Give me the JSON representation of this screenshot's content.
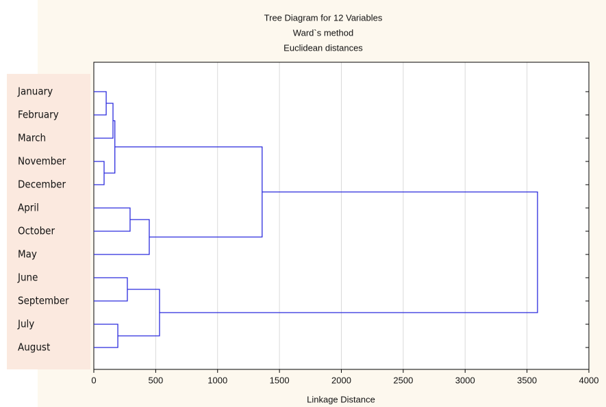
{
  "chart_data": {
    "type": "dendrogram",
    "title": "Tree Diagram for 12 Variables",
    "subtitle": [
      "Ward`s method",
      "Euclidean distances"
    ],
    "xlabel": "Linkage Distance",
    "xlim": [
      0,
      4000
    ],
    "xticks": [
      0,
      500,
      1000,
      1500,
      2000,
      2500,
      3000,
      3500,
      4000
    ],
    "grid": true,
    "color": "#2b2bdd",
    "tree": {
      "height": 3585,
      "children": [
        {
          "height": 1360,
          "children": [
            {
              "height": 170,
              "children": [
                {
                  "height": 155,
                  "children": [
                    {
                      "height": 100,
                      "children": [
                        "January",
                        "February"
                      ]
                    },
                    "March"
                  ]
                },
                {
                  "height": 83,
                  "children": [
                    "November",
                    "December"
                  ]
                }
              ]
            },
            {
              "height": 448,
              "children": [
                {
                  "height": 293,
                  "children": [
                    "April",
                    "October"
                  ]
                },
                "May"
              ]
            }
          ]
        },
        {
          "height": 531,
          "children": [
            {
              "height": 271,
              "children": [
                "June",
                "September"
              ]
            },
            {
              "height": 194,
              "children": [
                "July",
                "August"
              ]
            }
          ]
        }
      ]
    }
  }
}
